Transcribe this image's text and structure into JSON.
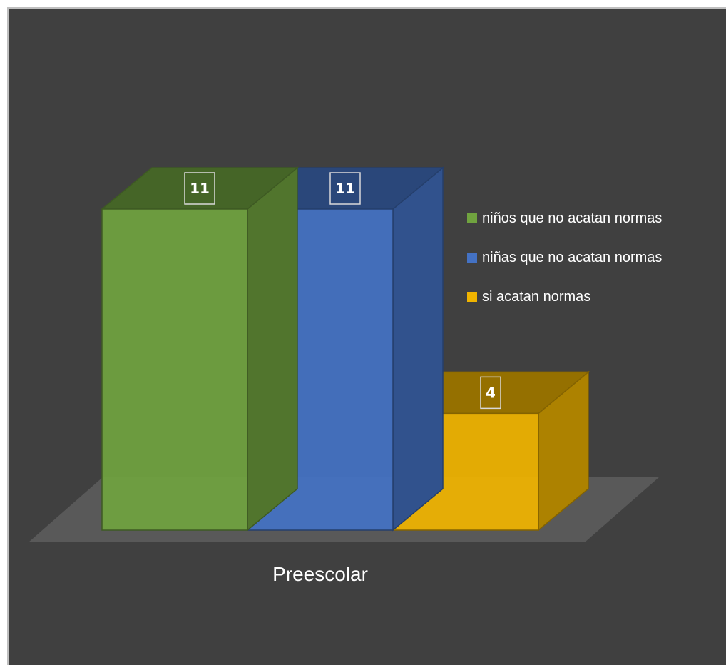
{
  "chart_data": {
    "type": "bar",
    "style": "3d-clustered-column",
    "categories": [
      "Preescolar"
    ],
    "series": [
      {
        "name": "niños que no acatan normas",
        "values": [
          11
        ],
        "color": "#70a33f"
      },
      {
        "name": "niñas que no acatan normas",
        "values": [
          11
        ],
        "color": "#4472c4"
      },
      {
        "name": "si acatan normas",
        "values": [
          4
        ],
        "color": "#f0b400"
      }
    ],
    "title": "",
    "xlabel": "",
    "ylabel": "",
    "ylim": [
      0,
      11
    ],
    "grid": false,
    "legend_position": "right",
    "data_labels": true,
    "background_color": "#404040",
    "floor_color": "#595959"
  }
}
